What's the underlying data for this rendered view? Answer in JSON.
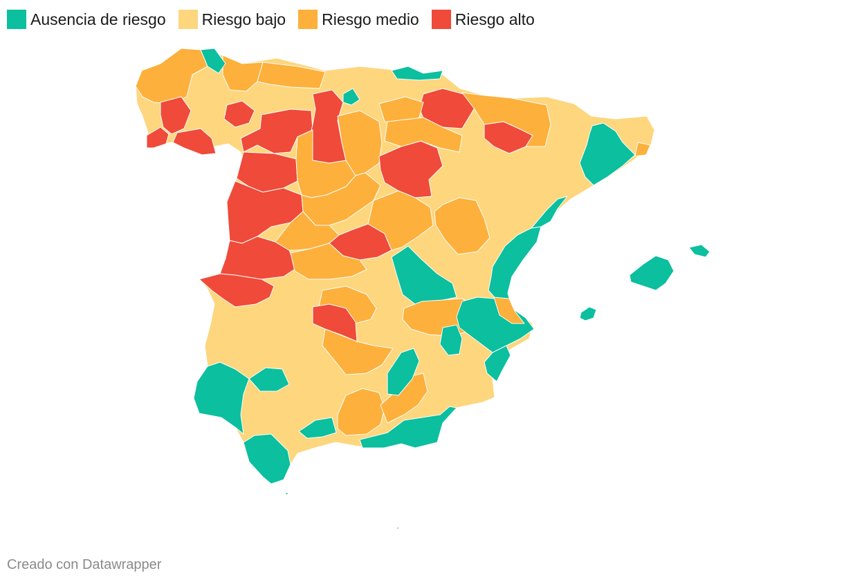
{
  "legend": {
    "items": [
      {
        "label": "Ausencia de riesgo",
        "color": "#0bbf9f"
      },
      {
        "label": "Riesgo bajo",
        "color": "#fdd67e"
      },
      {
        "label": "Riesgo medio",
        "color": "#fdb03b"
      },
      {
        "label": "Riesgo alto",
        "color": "#ef4a3a"
      }
    ]
  },
  "map": {
    "region": "España",
    "risk_colors": {
      "none": "#0bbf9f",
      "low": "#fdd67e",
      "medium": "#fdb03b",
      "high": "#ef4a3a"
    },
    "border_color": "#ffffff"
  },
  "footer": {
    "credit": "Creado con Datawrapper"
  }
}
